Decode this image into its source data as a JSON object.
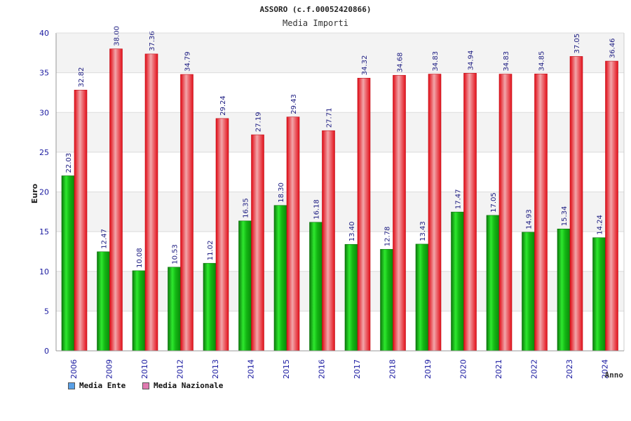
{
  "chart_data": {
    "type": "bar",
    "title": "ASSORO (c.f.00052420866)",
    "subtitle": "Media Importi",
    "xlabel": "Anno",
    "ylabel": "Euro",
    "ylim": [
      0,
      40
    ],
    "yticks": [
      0,
      5,
      10,
      15,
      20,
      25,
      30,
      35,
      40
    ],
    "categories": [
      "2006",
      "2009",
      "2010",
      "2012",
      "2013",
      "2014",
      "2015",
      "2016",
      "2017",
      "2018",
      "2019",
      "2020",
      "2021",
      "2022",
      "2023",
      "2024"
    ],
    "series": [
      {
        "name": "Media Ente",
        "color": "#1aa81a",
        "values": [
          22.03,
          12.47,
          10.08,
          10.53,
          11.02,
          16.35,
          18.3,
          16.18,
          13.4,
          12.78,
          13.43,
          17.47,
          17.05,
          14.93,
          15.34,
          14.24
        ],
        "labels": [
          "22.03",
          "12.47",
          "10.08",
          "10.53",
          "11.02",
          "16.35",
          "18.30",
          "16.18",
          "13.40",
          "12.78",
          "13.43",
          "17.47",
          "17.05",
          "14.93",
          "15.34",
          "14.24"
        ]
      },
      {
        "name": "Media Nazionale",
        "color": "#e8202a",
        "values": [
          32.82,
          38.0,
          37.36,
          34.79,
          29.24,
          27.19,
          29.43,
          27.71,
          34.32,
          34.68,
          34.83,
          34.94,
          34.83,
          34.85,
          37.05,
          36.46
        ],
        "labels": [
          "32.82",
          "38.00",
          "37.36",
          "34.79",
          "29.24",
          "27.19",
          "29.43",
          "27.71",
          "34.32",
          "34.68",
          "34.83",
          "34.94",
          "34.83",
          "34.85",
          "37.05",
          "36.46"
        ]
      }
    ],
    "legend": [
      {
        "label": "Media Ente",
        "swatch": "#5aa0e6"
      },
      {
        "label": "Media Nazionale",
        "swatch": "#e07ab0"
      }
    ],
    "grid": true
  }
}
